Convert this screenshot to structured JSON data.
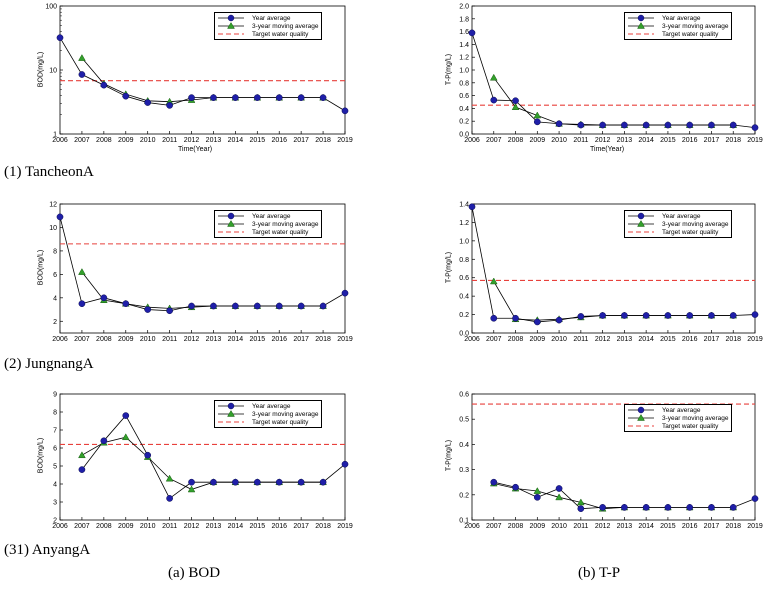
{
  "legend_labels": [
    "Year average",
    "3-year moving average",
    "Target water quality"
  ],
  "colors": {
    "year_average": "#1f1fa8",
    "moving_average": "#33a02c",
    "target": "#e8413c",
    "axis": "#000000"
  },
  "row_labels": [
    "(1)  TancheonA",
    "(2)  JungnangA",
    "(31)  AnyangA"
  ],
  "column_labels": [
    "(a)  BOD",
    "(b)  T-P"
  ],
  "chart_data": [
    {
      "id": "tancheon-bod",
      "type": "line",
      "ylabel": "BOD(mg/L)",
      "xlabel": "Time(Year)",
      "yscale": "log",
      "ylim": [
        1,
        100
      ],
      "yticks": [
        "1",
        "10",
        "100"
      ],
      "x": [
        2006,
        2007,
        2008,
        2009,
        2010,
        2011,
        2012,
        2013,
        2014,
        2015,
        2016,
        2017,
        2018,
        2019
      ],
      "series": [
        {
          "name": "Year average",
          "x": [
            2006,
            2007,
            2008,
            2009,
            2010,
            2011,
            2012,
            2013,
            2014,
            2015,
            2016,
            2017,
            2018,
            2019
          ],
          "values": [
            32,
            8.5,
            5.8,
            3.9,
            3.1,
            2.8,
            3.7,
            3.7,
            3.7,
            3.7,
            3.7,
            3.7,
            3.7,
            2.3
          ]
        },
        {
          "name": "3-year moving average",
          "x": [
            2007,
            2008,
            2009,
            2010,
            2011,
            2012,
            2013,
            2014,
            2015,
            2016,
            2017,
            2018
          ],
          "values": [
            15.4,
            6.1,
            4.2,
            3.3,
            3.2,
            3.4,
            3.7,
            3.7,
            3.7,
            3.7,
            3.7,
            3.7
          ]
        }
      ],
      "target": 6.8
    },
    {
      "id": "tancheon-tp",
      "type": "line",
      "ylabel": "T-P(mg/L)",
      "xlabel": "Time(Year)",
      "yscale": "linear",
      "ylim": [
        0,
        2.0
      ],
      "yticks": [
        "0.0",
        "0.2",
        "0.4",
        "0.6",
        "0.8",
        "1.0",
        "1.2",
        "1.4",
        "1.6",
        "1.8",
        "2.0"
      ],
      "x": [
        2006,
        2007,
        2008,
        2009,
        2010,
        2011,
        2012,
        2013,
        2014,
        2015,
        2016,
        2017,
        2018,
        2019
      ],
      "series": [
        {
          "name": "Year average",
          "x": [
            2006,
            2007,
            2008,
            2009,
            2010,
            2011,
            2012,
            2013,
            2014,
            2015,
            2016,
            2017,
            2018,
            2019
          ],
          "values": [
            1.58,
            0.53,
            0.52,
            0.19,
            0.16,
            0.14,
            0.14,
            0.14,
            0.14,
            0.14,
            0.14,
            0.14,
            0.14,
            0.1
          ]
        },
        {
          "name": "3-year moving average",
          "x": [
            2007,
            2008,
            2009,
            2010,
            2011,
            2012,
            2013,
            2014,
            2015,
            2016,
            2017,
            2018
          ],
          "values": [
            0.88,
            0.42,
            0.29,
            0.16,
            0.15,
            0.14,
            0.14,
            0.14,
            0.14,
            0.14,
            0.14,
            0.14
          ]
        }
      ],
      "target": 0.45
    },
    {
      "id": "jungnang-bod",
      "type": "line",
      "ylabel": "BOD(mg/L)",
      "xlabel": "",
      "yscale": "linear",
      "ylim": [
        1,
        12
      ],
      "yticks": [
        "2",
        "4",
        "6",
        "8",
        "10",
        "12"
      ],
      "x": [
        2006,
        2007,
        2008,
        2009,
        2010,
        2011,
        2012,
        2013,
        2014,
        2015,
        2016,
        2017,
        2018,
        2019
      ],
      "series": [
        {
          "name": "Year average",
          "x": [
            2006,
            2007,
            2008,
            2009,
            2010,
            2011,
            2012,
            2013,
            2014,
            2015,
            2016,
            2017,
            2018,
            2019
          ],
          "values": [
            10.9,
            3.5,
            4.0,
            3.5,
            3.0,
            2.9,
            3.3,
            3.3,
            3.3,
            3.3,
            3.3,
            3.3,
            3.3,
            4.4
          ]
        },
        {
          "name": "3-year moving average",
          "x": [
            2007,
            2008,
            2009,
            2010,
            2011,
            2012,
            2013,
            2014,
            2015,
            2016,
            2017,
            2018
          ],
          "values": [
            6.2,
            3.8,
            3.5,
            3.2,
            3.1,
            3.2,
            3.3,
            3.3,
            3.3,
            3.3,
            3.3,
            3.3
          ]
        }
      ],
      "target": 8.6
    },
    {
      "id": "jungnang-tp",
      "type": "line",
      "ylabel": "T-P(mg/L)",
      "xlabel": "",
      "yscale": "linear",
      "ylim": [
        0,
        1.4
      ],
      "yticks": [
        "0.0",
        "0.2",
        "0.4",
        "0.6",
        "0.8",
        "1.0",
        "1.2",
        "1.4"
      ],
      "x": [
        2006,
        2007,
        2008,
        2009,
        2010,
        2011,
        2012,
        2013,
        2014,
        2015,
        2016,
        2017,
        2018,
        2019
      ],
      "series": [
        {
          "name": "Year average",
          "x": [
            2006,
            2007,
            2008,
            2009,
            2010,
            2011,
            2012,
            2013,
            2014,
            2015,
            2016,
            2017,
            2018,
            2019
          ],
          "values": [
            1.37,
            0.16,
            0.16,
            0.12,
            0.14,
            0.18,
            0.19,
            0.19,
            0.19,
            0.19,
            0.19,
            0.19,
            0.19,
            0.2
          ]
        },
        {
          "name": "3-year moving average",
          "x": [
            2007,
            2008,
            2009,
            2010,
            2011,
            2012,
            2013,
            2014,
            2015,
            2016,
            2017,
            2018
          ],
          "values": [
            0.56,
            0.15,
            0.14,
            0.15,
            0.17,
            0.19,
            0.19,
            0.19,
            0.19,
            0.19,
            0.19,
            0.19
          ]
        }
      ],
      "target": 0.57
    },
    {
      "id": "anyang-bod",
      "type": "line",
      "ylabel": "BOD(mg/L)",
      "xlabel": "",
      "yscale": "linear",
      "ylim": [
        2,
        9
      ],
      "yticks": [
        "2",
        "3",
        "4",
        "5",
        "6",
        "7",
        "8",
        "9"
      ],
      "x": [
        2006,
        2007,
        2008,
        2009,
        2010,
        2011,
        2012,
        2013,
        2014,
        2015,
        2016,
        2017,
        2018,
        2019
      ],
      "series": [
        {
          "name": "Year average",
          "x": [
            2007,
            2008,
            2009,
            2010,
            2011,
            2012,
            2013,
            2014,
            2015,
            2016,
            2017,
            2018,
            2019
          ],
          "values": [
            4.8,
            6.4,
            7.8,
            5.6,
            3.2,
            4.1,
            4.1,
            4.1,
            4.1,
            4.1,
            4.1,
            4.1,
            5.1
          ]
        },
        {
          "name": "3-year moving average",
          "x": [
            2007,
            2008,
            2009,
            2010,
            2011,
            2012,
            2013,
            2014,
            2015,
            2016,
            2017,
            2018
          ],
          "values": [
            5.6,
            6.3,
            6.6,
            5.5,
            4.3,
            3.7,
            4.1,
            4.1,
            4.1,
            4.1,
            4.1,
            4.1
          ]
        }
      ],
      "target": 6.2
    },
    {
      "id": "anyang-tp",
      "type": "line",
      "ylabel": "T-P(mg/L)",
      "xlabel": "",
      "yscale": "linear",
      "ylim": [
        0.1,
        0.6
      ],
      "yticks": [
        "0.1",
        "0.2",
        "0.3",
        "0.4",
        "0.5",
        "0.6"
      ],
      "x": [
        2006,
        2007,
        2008,
        2009,
        2010,
        2011,
        2012,
        2013,
        2014,
        2015,
        2016,
        2017,
        2018,
        2019
      ],
      "series": [
        {
          "name": "Year average",
          "x": [
            2007,
            2008,
            2009,
            2010,
            2011,
            2012,
            2013,
            2014,
            2015,
            2016,
            2017,
            2018,
            2019
          ],
          "values": [
            0.25,
            0.23,
            0.19,
            0.225,
            0.145,
            0.15,
            0.15,
            0.15,
            0.15,
            0.15,
            0.15,
            0.15,
            0.185
          ]
        },
        {
          "name": "3-year moving average",
          "x": [
            2007,
            2008,
            2009,
            2010,
            2011,
            2012,
            2013,
            2014,
            2015,
            2016,
            2017,
            2018
          ],
          "values": [
            0.245,
            0.225,
            0.215,
            0.19,
            0.17,
            0.145,
            0.15,
            0.15,
            0.15,
            0.15,
            0.15,
            0.15
          ]
        }
      ],
      "target": 0.56
    }
  ]
}
